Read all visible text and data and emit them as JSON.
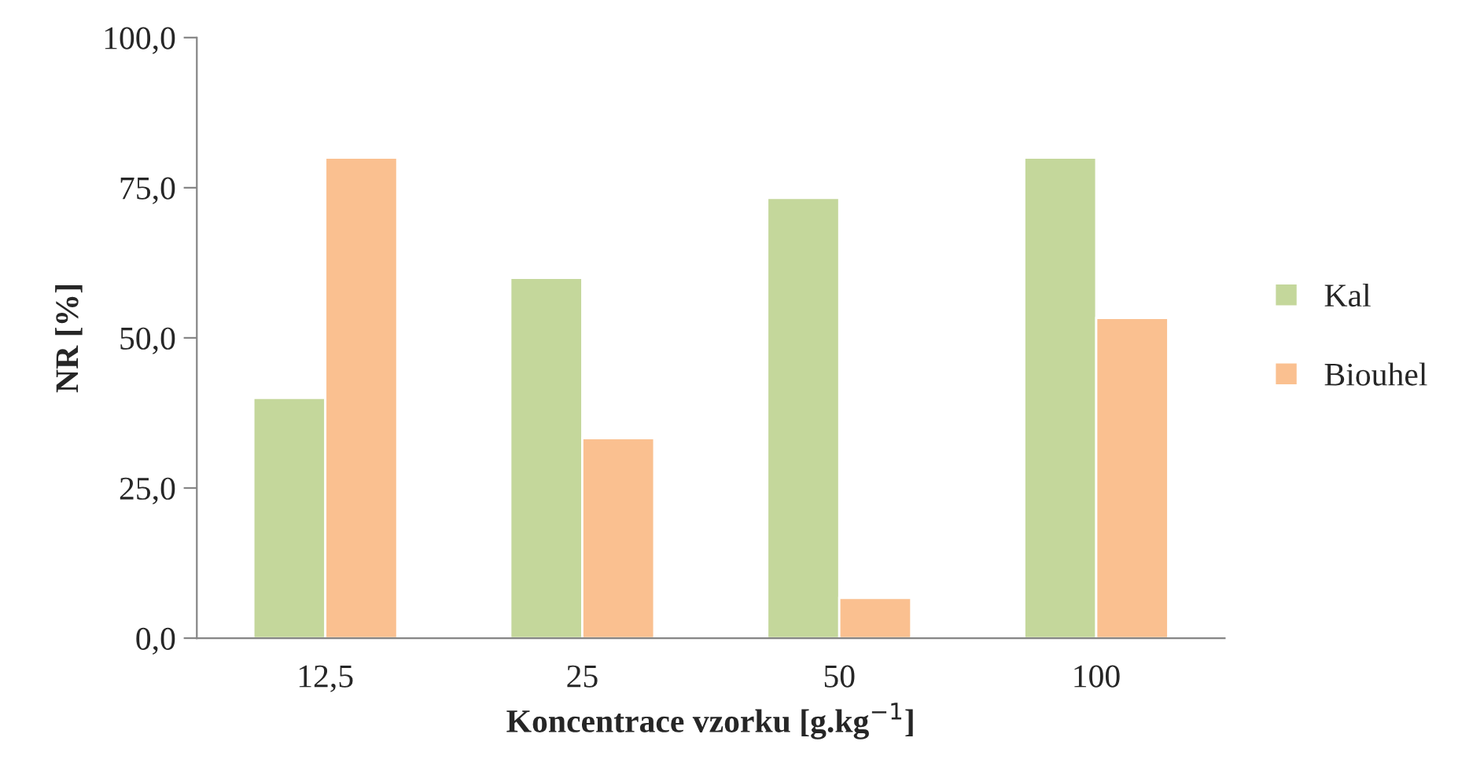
{
  "chart_data": {
    "type": "bar",
    "xlabel": "Koncentrace vzorku [g.kg$^{−1}$]",
    "ylabel": "NR [%]",
    "categories": [
      "12,5",
      "25",
      "50",
      "100"
    ],
    "series": [
      {
        "name": "Kal",
        "color": "#c4d79b",
        "values": [
          40,
          60,
          73.3,
          80
        ]
      },
      {
        "name": "Biouhel",
        "color": "#fac090",
        "values": [
          80,
          33.3,
          6.7,
          53.3
        ]
      }
    ],
    "ylim": [
      0,
      100
    ],
    "yticks": [
      {
        "value": 0,
        "label": "0,0"
      },
      {
        "value": 25,
        "label": "25,0"
      },
      {
        "value": 50,
        "label": "50,0"
      },
      {
        "value": 75,
        "label": "75,0"
      },
      {
        "value": 100,
        "label": "100,0"
      }
    ],
    "grid": false,
    "legend": "right"
  }
}
